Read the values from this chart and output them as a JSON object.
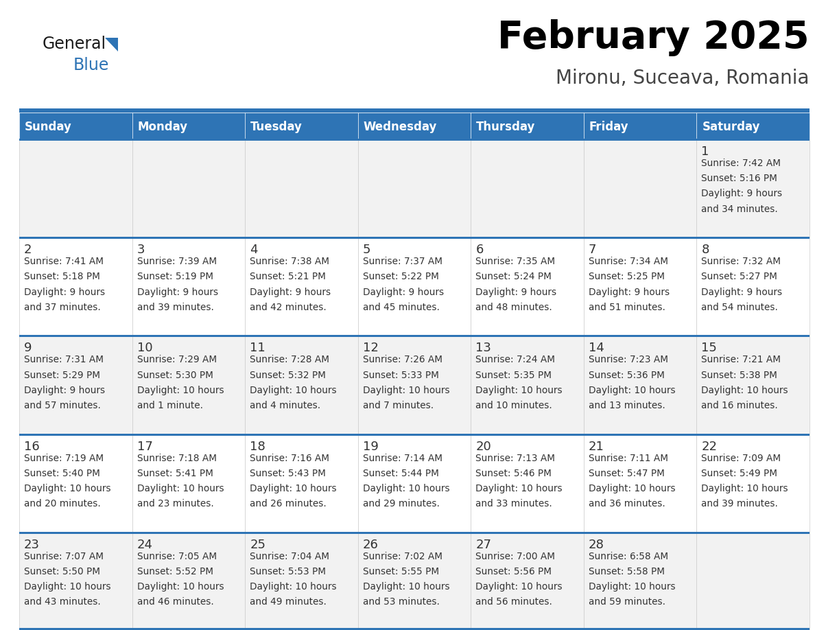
{
  "title": "February 2025",
  "subtitle": "Mironu, Suceava, Romania",
  "header_bg": "#2E74B5",
  "header_text": "#FFFFFF",
  "row_bg_even": "#F2F2F2",
  "row_bg_odd": "#FFFFFF",
  "cell_border_color": "#3A7FC1",
  "text_color": "#333333",
  "day_names": [
    "Sunday",
    "Monday",
    "Tuesday",
    "Wednesday",
    "Thursday",
    "Friday",
    "Saturday"
  ],
  "days": [
    {
      "day": 1,
      "col": 6,
      "row": 0,
      "sunrise": "7:42 AM",
      "sunset": "5:16 PM",
      "daylight": "9 hours and 34 minutes."
    },
    {
      "day": 2,
      "col": 0,
      "row": 1,
      "sunrise": "7:41 AM",
      "sunset": "5:18 PM",
      "daylight": "9 hours and 37 minutes."
    },
    {
      "day": 3,
      "col": 1,
      "row": 1,
      "sunrise": "7:39 AM",
      "sunset": "5:19 PM",
      "daylight": "9 hours and 39 minutes."
    },
    {
      "day": 4,
      "col": 2,
      "row": 1,
      "sunrise": "7:38 AM",
      "sunset": "5:21 PM",
      "daylight": "9 hours and 42 minutes."
    },
    {
      "day": 5,
      "col": 3,
      "row": 1,
      "sunrise": "7:37 AM",
      "sunset": "5:22 PM",
      "daylight": "9 hours and 45 minutes."
    },
    {
      "day": 6,
      "col": 4,
      "row": 1,
      "sunrise": "7:35 AM",
      "sunset": "5:24 PM",
      "daylight": "9 hours and 48 minutes."
    },
    {
      "day": 7,
      "col": 5,
      "row": 1,
      "sunrise": "7:34 AM",
      "sunset": "5:25 PM",
      "daylight": "9 hours and 51 minutes."
    },
    {
      "day": 8,
      "col": 6,
      "row": 1,
      "sunrise": "7:32 AM",
      "sunset": "5:27 PM",
      "daylight": "9 hours and 54 minutes."
    },
    {
      "day": 9,
      "col": 0,
      "row": 2,
      "sunrise": "7:31 AM",
      "sunset": "5:29 PM",
      "daylight": "9 hours and 57 minutes."
    },
    {
      "day": 10,
      "col": 1,
      "row": 2,
      "sunrise": "7:29 AM",
      "sunset": "5:30 PM",
      "daylight": "10 hours and 1 minute."
    },
    {
      "day": 11,
      "col": 2,
      "row": 2,
      "sunrise": "7:28 AM",
      "sunset": "5:32 PM",
      "daylight": "10 hours and 4 minutes."
    },
    {
      "day": 12,
      "col": 3,
      "row": 2,
      "sunrise": "7:26 AM",
      "sunset": "5:33 PM",
      "daylight": "10 hours and 7 minutes."
    },
    {
      "day": 13,
      "col": 4,
      "row": 2,
      "sunrise": "7:24 AM",
      "sunset": "5:35 PM",
      "daylight": "10 hours and 10 minutes."
    },
    {
      "day": 14,
      "col": 5,
      "row": 2,
      "sunrise": "7:23 AM",
      "sunset": "5:36 PM",
      "daylight": "10 hours and 13 minutes."
    },
    {
      "day": 15,
      "col": 6,
      "row": 2,
      "sunrise": "7:21 AM",
      "sunset": "5:38 PM",
      "daylight": "10 hours and 16 minutes."
    },
    {
      "day": 16,
      "col": 0,
      "row": 3,
      "sunrise": "7:19 AM",
      "sunset": "5:40 PM",
      "daylight": "10 hours and 20 minutes."
    },
    {
      "day": 17,
      "col": 1,
      "row": 3,
      "sunrise": "7:18 AM",
      "sunset": "5:41 PM",
      "daylight": "10 hours and 23 minutes."
    },
    {
      "day": 18,
      "col": 2,
      "row": 3,
      "sunrise": "7:16 AM",
      "sunset": "5:43 PM",
      "daylight": "10 hours and 26 minutes."
    },
    {
      "day": 19,
      "col": 3,
      "row": 3,
      "sunrise": "7:14 AM",
      "sunset": "5:44 PM",
      "daylight": "10 hours and 29 minutes."
    },
    {
      "day": 20,
      "col": 4,
      "row": 3,
      "sunrise": "7:13 AM",
      "sunset": "5:46 PM",
      "daylight": "10 hours and 33 minutes."
    },
    {
      "day": 21,
      "col": 5,
      "row": 3,
      "sunrise": "7:11 AM",
      "sunset": "5:47 PM",
      "daylight": "10 hours and 36 minutes."
    },
    {
      "day": 22,
      "col": 6,
      "row": 3,
      "sunrise": "7:09 AM",
      "sunset": "5:49 PM",
      "daylight": "10 hours and 39 minutes."
    },
    {
      "day": 23,
      "col": 0,
      "row": 4,
      "sunrise": "7:07 AM",
      "sunset": "5:50 PM",
      "daylight": "10 hours and 43 minutes."
    },
    {
      "day": 24,
      "col": 1,
      "row": 4,
      "sunrise": "7:05 AM",
      "sunset": "5:52 PM",
      "daylight": "10 hours and 46 minutes."
    },
    {
      "day": 25,
      "col": 2,
      "row": 4,
      "sunrise": "7:04 AM",
      "sunset": "5:53 PM",
      "daylight": "10 hours and 49 minutes."
    },
    {
      "day": 26,
      "col": 3,
      "row": 4,
      "sunrise": "7:02 AM",
      "sunset": "5:55 PM",
      "daylight": "10 hours and 53 minutes."
    },
    {
      "day": 27,
      "col": 4,
      "row": 4,
      "sunrise": "7:00 AM",
      "sunset": "5:56 PM",
      "daylight": "10 hours and 56 minutes."
    },
    {
      "day": 28,
      "col": 5,
      "row": 4,
      "sunrise": "6:58 AM",
      "sunset": "5:58 PM",
      "daylight": "10 hours and 59 minutes."
    }
  ],
  "num_rows": 5,
  "num_cols": 7,
  "logo_general_color": "#1a1a1a",
  "logo_blue_color": "#2E74B5",
  "logo_triangle_color": "#2E74B5"
}
